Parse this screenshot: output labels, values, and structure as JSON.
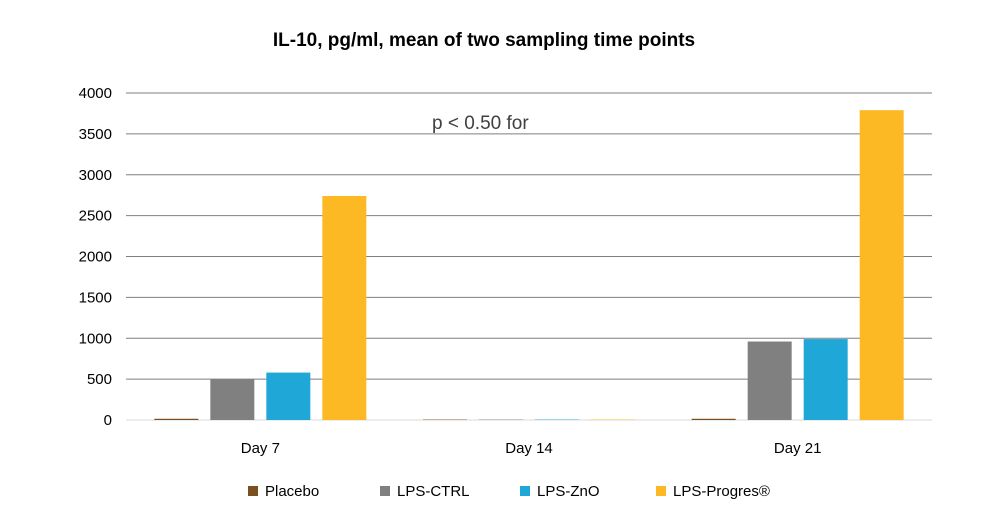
{
  "chart_data": {
    "type": "bar",
    "title": "IL-10, pg/ml, mean of two sampling time points",
    "annotation": "p < 0.50 for",
    "categories": [
      "Day 7",
      "Day 14",
      "Day 21"
    ],
    "series": [
      {
        "name": "Placebo",
        "color": "#7B4F1E",
        "values": [
          15,
          5,
          15
        ]
      },
      {
        "name": "LPS-CTRL",
        "color": "#808080",
        "values": [
          500,
          5,
          960
        ]
      },
      {
        "name": "LPS-ZnO",
        "color": "#1FA7D7",
        "values": [
          580,
          5,
          990
        ]
      },
      {
        "name": "LPS-Progres®",
        "color": "#FDB924",
        "values": [
          2740,
          5,
          3790
        ]
      }
    ],
    "ylim": [
      0,
      4000
    ],
    "yticks": [
      0,
      500,
      1000,
      1500,
      2000,
      2500,
      3000,
      3500,
      4000
    ],
    "grid": true,
    "legend_position": "bottom",
    "xlabel": "",
    "ylabel": ""
  }
}
